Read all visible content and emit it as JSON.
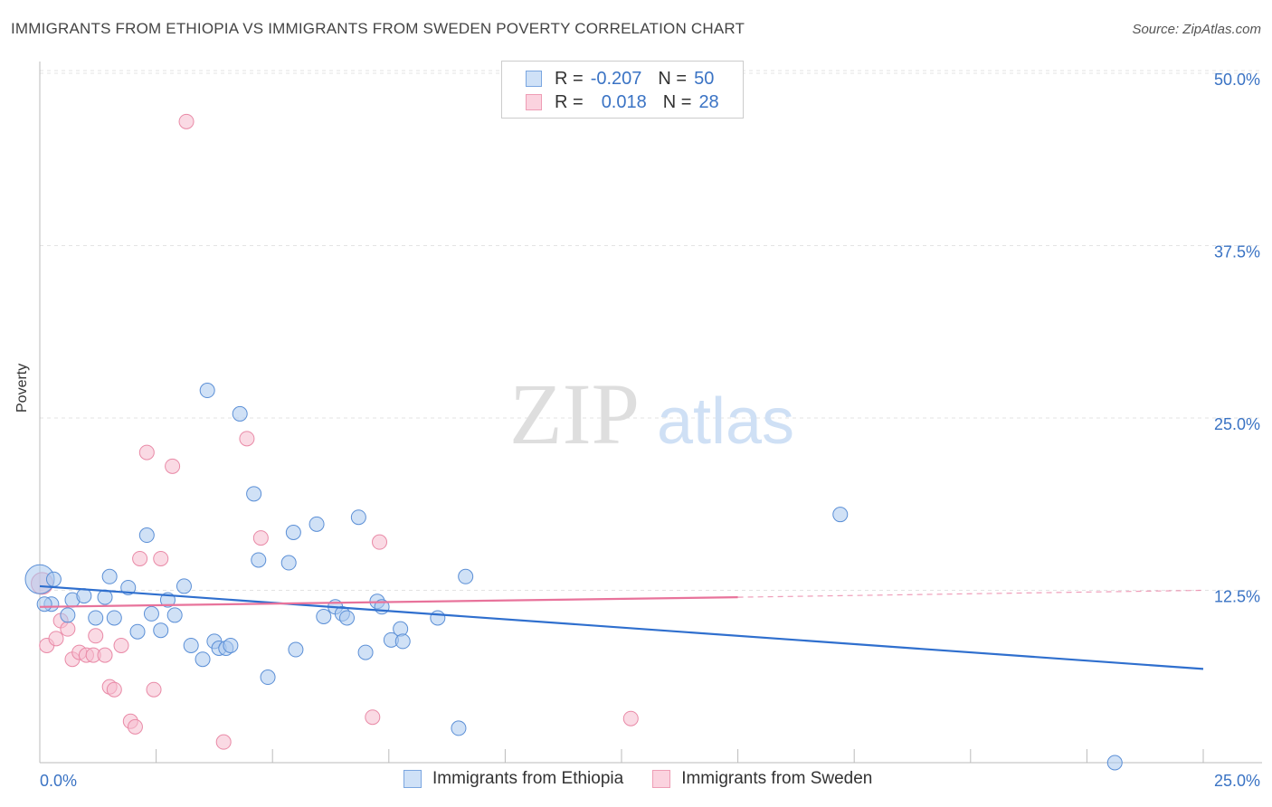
{
  "header": {
    "title": "IMMIGRANTS FROM ETHIOPIA VS IMMIGRANTS FROM SWEDEN POVERTY CORRELATION CHART",
    "source": "Source: ZipAtlas.com"
  },
  "watermark": {
    "zip": "ZIP",
    "atlas": "atlas"
  },
  "legend_top": {
    "rows": [
      {
        "r_label": "R =",
        "r_value": "-0.207",
        "n_label": "N =",
        "n_value": "50",
        "color": "#a9c8ef"
      },
      {
        "r_label": "R =",
        "r_value": "0.018",
        "n_label": "N =",
        "n_value": "28",
        "color": "#f6bccd"
      }
    ]
  },
  "legend_bottom": {
    "items": [
      {
        "label": "Immigrants from Ethiopia",
        "color": "#a9c8ef"
      },
      {
        "label": "Immigrants from Sweden",
        "color": "#f6bccd"
      }
    ]
  },
  "colors": {
    "blue_fill": "#a9c8ef",
    "blue_stroke": "#5b8fd6",
    "blue_line": "#2f6fce",
    "pink_fill": "#f6bccd",
    "pink_stroke": "#e98aa7",
    "pink_line": "#e8739b",
    "axis_text": "#3a73c4",
    "grid": "#e3e3e3"
  },
  "chart_data": {
    "type": "scatter",
    "title": "IMMIGRANTS FROM ETHIOPIA VS IMMIGRANTS FROM SWEDEN POVERTY CORRELATION CHART",
    "xlabel": "",
    "ylabel": "Poverty",
    "xlim": [
      0,
      25
    ],
    "ylim": [
      0,
      50
    ],
    "x_tick_labels": [
      "0.0%",
      "25.0%"
    ],
    "y_ticks": [
      12.5,
      25.0,
      37.5,
      50.0
    ],
    "y_tick_labels": [
      "12.5%",
      "25.0%",
      "37.5%",
      "50.0%"
    ],
    "grid": true,
    "series": [
      {
        "name": "Immigrants from Ethiopia",
        "points": [
          [
            0.0,
            13.3
          ],
          [
            0.3,
            13.3
          ],
          [
            0.25,
            11.5
          ],
          [
            0.6,
            10.7
          ],
          [
            0.7,
            11.8
          ],
          [
            0.95,
            12.1
          ],
          [
            1.2,
            10.5
          ],
          [
            1.4,
            12.0
          ],
          [
            1.5,
            13.5
          ],
          [
            1.6,
            10.5
          ],
          [
            1.9,
            12.7
          ],
          [
            2.1,
            9.5
          ],
          [
            2.3,
            16.5
          ],
          [
            2.4,
            10.8
          ],
          [
            2.6,
            9.6
          ],
          [
            2.75,
            11.8
          ],
          [
            2.9,
            10.7
          ],
          [
            3.1,
            12.8
          ],
          [
            3.25,
            8.5
          ],
          [
            3.5,
            7.5
          ],
          [
            3.6,
            27.0
          ],
          [
            3.75,
            8.8
          ],
          [
            3.85,
            8.3
          ],
          [
            4.0,
            8.3
          ],
          [
            4.1,
            8.5
          ],
          [
            4.3,
            25.3
          ],
          [
            4.6,
            19.5
          ],
          [
            4.7,
            14.7
          ],
          [
            4.9,
            6.2
          ],
          [
            5.35,
            14.5
          ],
          [
            5.45,
            16.7
          ],
          [
            5.5,
            8.2
          ],
          [
            5.95,
            17.3
          ],
          [
            6.1,
            10.6
          ],
          [
            6.35,
            11.3
          ],
          [
            6.5,
            10.8
          ],
          [
            6.6,
            10.5
          ],
          [
            6.85,
            17.8
          ],
          [
            7.0,
            8.0
          ],
          [
            7.25,
            11.7
          ],
          [
            7.35,
            11.3
          ],
          [
            7.55,
            8.9
          ],
          [
            7.75,
            9.7
          ],
          [
            7.8,
            8.8
          ],
          [
            8.55,
            10.5
          ],
          [
            9.0,
            2.5
          ],
          [
            9.15,
            13.5
          ],
          [
            17.2,
            18.0
          ],
          [
            23.1,
            0.0
          ],
          [
            0.1,
            11.5
          ]
        ]
      },
      {
        "name": "Immigrants from Sweden",
        "points": [
          [
            0.05,
            13.0
          ],
          [
            0.15,
            8.5
          ],
          [
            0.35,
            9.0
          ],
          [
            0.45,
            10.3
          ],
          [
            0.6,
            9.7
          ],
          [
            0.7,
            7.5
          ],
          [
            0.85,
            8.0
          ],
          [
            1.0,
            7.8
          ],
          [
            1.2,
            9.2
          ],
          [
            1.15,
            7.8
          ],
          [
            1.4,
            7.8
          ],
          [
            1.5,
            5.5
          ],
          [
            1.6,
            5.3
          ],
          [
            1.75,
            8.5
          ],
          [
            1.95,
            3.0
          ],
          [
            2.05,
            2.6
          ],
          [
            2.15,
            14.8
          ],
          [
            2.3,
            22.5
          ],
          [
            2.45,
            5.3
          ],
          [
            2.6,
            14.8
          ],
          [
            2.85,
            21.5
          ],
          [
            3.15,
            46.5
          ],
          [
            3.95,
            1.5
          ],
          [
            4.45,
            23.5
          ],
          [
            4.75,
            16.3
          ],
          [
            7.15,
            3.3
          ],
          [
            7.3,
            16.0
          ],
          [
            12.7,
            3.2
          ]
        ]
      }
    ],
    "trend_lines": [
      {
        "series": "Immigrants from Ethiopia",
        "from": [
          0,
          12.8
        ],
        "to": [
          25,
          6.8
        ]
      },
      {
        "series": "Immigrants from Sweden",
        "from": [
          0,
          11.3
        ],
        "to": [
          15,
          12.0
        ],
        "dashed_to": [
          25,
          12.5
        ]
      }
    ]
  }
}
